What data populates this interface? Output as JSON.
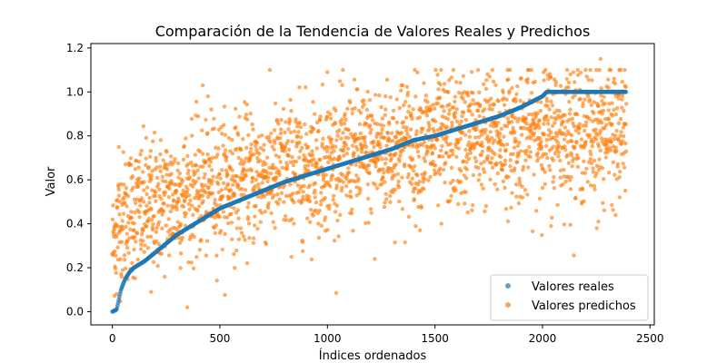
{
  "chart_data": {
    "type": "scatter",
    "title": "Comparación de la Tendencia de Valores Reales y Predichos",
    "xlabel": "Índices ordenados",
    "ylabel": "Valor",
    "xlim": [
      -100,
      2520
    ],
    "ylim": [
      -0.06,
      1.22
    ],
    "xticks": [
      0,
      500,
      1000,
      1500,
      2000,
      2500
    ],
    "yticks": [
      0.0,
      0.2,
      0.4,
      0.6,
      0.8,
      1.0,
      1.2
    ],
    "xtick_labels": [
      "0",
      "500",
      "1000",
      "1500",
      "2000",
      "2500"
    ],
    "ytick_labels": [
      "0.0",
      "0.2",
      "0.4",
      "0.6",
      "0.8",
      "1.0",
      "1.2"
    ],
    "legend_position": "lower-right",
    "grid": false,
    "series": [
      {
        "name": "Valores reales",
        "color": "#1f77b4",
        "x": [
          0,
          20,
          40,
          60,
          80,
          100,
          150,
          200,
          300,
          400,
          500,
          600,
          700,
          800,
          900,
          1000,
          1100,
          1200,
          1300,
          1400,
          1500,
          1600,
          1700,
          1800,
          1900,
          2000,
          2020,
          2100,
          2200,
          2300,
          2390
        ],
        "y": [
          0.0,
          0.01,
          0.1,
          0.15,
          0.18,
          0.2,
          0.23,
          0.27,
          0.35,
          0.41,
          0.47,
          0.51,
          0.55,
          0.59,
          0.62,
          0.65,
          0.68,
          0.71,
          0.74,
          0.78,
          0.8,
          0.83,
          0.86,
          0.89,
          0.93,
          0.98,
          1.0,
          1.0,
          1.0,
          1.0,
          1.0
        ]
      },
      {
        "name": "Valores predichos",
        "color": "#ff7f0e",
        "x": [
          0,
          20,
          40,
          60,
          80,
          100,
          150,
          200,
          300,
          400,
          500,
          600,
          700,
          800,
          900,
          1000,
          1100,
          1200,
          1300,
          1400,
          1500,
          1600,
          1700,
          1800,
          1900,
          2000,
          2100,
          2200,
          2300,
          2390
        ],
        "y": [
          0.3,
          0.38,
          0.42,
          0.44,
          0.45,
          0.46,
          0.47,
          0.49,
          0.52,
          0.55,
          0.58,
          0.6,
          0.62,
          0.64,
          0.66,
          0.68,
          0.7,
          0.72,
          0.74,
          0.76,
          0.77,
          0.78,
          0.79,
          0.8,
          0.81,
          0.82,
          0.82,
          0.82,
          0.82,
          0.82
        ],
        "spread": [
          0.12,
          0.14,
          0.14,
          0.15,
          0.15,
          0.15,
          0.15,
          0.15,
          0.15,
          0.15,
          0.15,
          0.15,
          0.15,
          0.15,
          0.15,
          0.15,
          0.15,
          0.15,
          0.15,
          0.15,
          0.15,
          0.15,
          0.15,
          0.15,
          0.15,
          0.15,
          0.15,
          0.15,
          0.15,
          0.15
        ],
        "outliers": [
          {
            "x": 30,
            "y": 0.75
          },
          {
            "x": 20,
            "y": 0.08
          },
          {
            "x": 180,
            "y": 0.09
          },
          {
            "x": 420,
            "y": 1.03
          },
          {
            "x": 1000,
            "y": 1.09
          },
          {
            "x": 1220,
            "y": 0.24
          },
          {
            "x": 1350,
            "y": 1.03
          },
          {
            "x": 2270,
            "y": 1.15
          },
          {
            "x": 2130,
            "y": 1.08
          },
          {
            "x": 2260,
            "y": 0.41
          },
          {
            "x": 2040,
            "y": 0.39
          },
          {
            "x": 2340,
            "y": 0.44
          },
          {
            "x": 1530,
            "y": 0.4
          },
          {
            "x": 1270,
            "y": 0.98
          },
          {
            "x": 460,
            "y": 0.92
          }
        ]
      }
    ]
  }
}
